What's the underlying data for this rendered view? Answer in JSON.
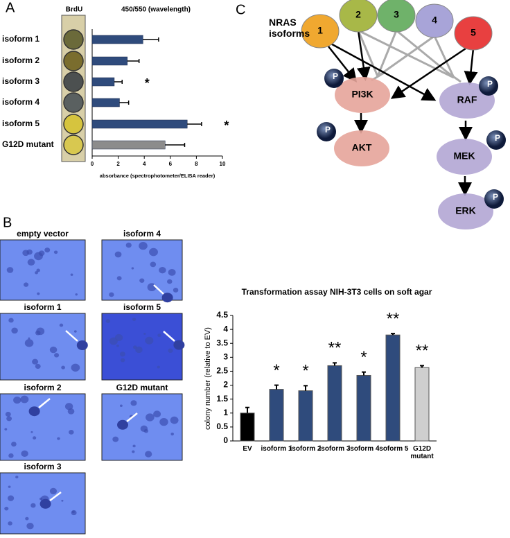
{
  "panel_labels": [
    "A",
    "B",
    "C"
  ],
  "chart_data": [
    {
      "type": "bar",
      "orientation": "horizontal",
      "title": "450/550  (wavelength)",
      "column_header": "BrdU",
      "x_label": "absorbance (spectrophotometer/ELISA reader)",
      "categories": [
        "isoform 1",
        "isoform 2",
        "isoform 3",
        "isoform 4",
        "isoform 5",
        "G12D mutant"
      ],
      "values": [
        3.9,
        2.7,
        1.7,
        2.1,
        7.3,
        5.6
      ],
      "errors": [
        1.2,
        0.9,
        0.6,
        0.7,
        1.1,
        1.5
      ],
      "colors": [
        "#2f4b7c",
        "#2f4b7c",
        "#2f4b7c",
        "#2f4b7c",
        "#2f4b7c",
        "#8c8c8c"
      ],
      "significance": [
        null,
        null,
        "*",
        null,
        "*",
        null
      ],
      "xlim": [
        0,
        10
      ],
      "xticks": [
        0,
        2,
        4,
        6,
        8,
        10
      ]
    },
    {
      "type": "bar",
      "title": "Transformation assay NIH-3T3 cells on soft agar",
      "y_label": "colony number (relative to EV)",
      "categories": [
        "EV",
        "isoform 1",
        "isoform 2",
        "isoform 3",
        "isoform 4",
        "isoform 5",
        "G12D mutant"
      ],
      "values": [
        1.0,
        1.85,
        1.8,
        2.7,
        2.35,
        3.8,
        2.63
      ],
      "errors": [
        0.2,
        0.15,
        0.18,
        0.1,
        0.12,
        0.05,
        0.07
      ],
      "colors": [
        "#000000",
        "#2f4b7c",
        "#2f4b7c",
        "#2f4b7c",
        "#2f4b7c",
        "#2f4b7c",
        "#cfcfcf"
      ],
      "significance": [
        null,
        "*",
        "*",
        "**",
        "*",
        "**",
        "**"
      ],
      "ylim": [
        0,
        4.5
      ],
      "yticks": [
        0,
        0.5,
        1,
        1.5,
        2,
        2.5,
        3,
        3.5,
        4,
        4.5
      ]
    }
  ],
  "photos": [
    "empty vector",
    "isoform 1",
    "isoform 2",
    "isoform 3",
    "isoform 4",
    "isoform 5",
    "G12D mutant"
  ],
  "diagram": {
    "title": "NRAS isoforms",
    "isoforms": [
      "1",
      "2",
      "3",
      "4",
      "5"
    ],
    "nodes": [
      "PI3K",
      "AKT",
      "RAF",
      "MEK",
      "ERK"
    ],
    "phospho": [
      "P",
      "P",
      "P",
      "P",
      "P"
    ]
  }
}
